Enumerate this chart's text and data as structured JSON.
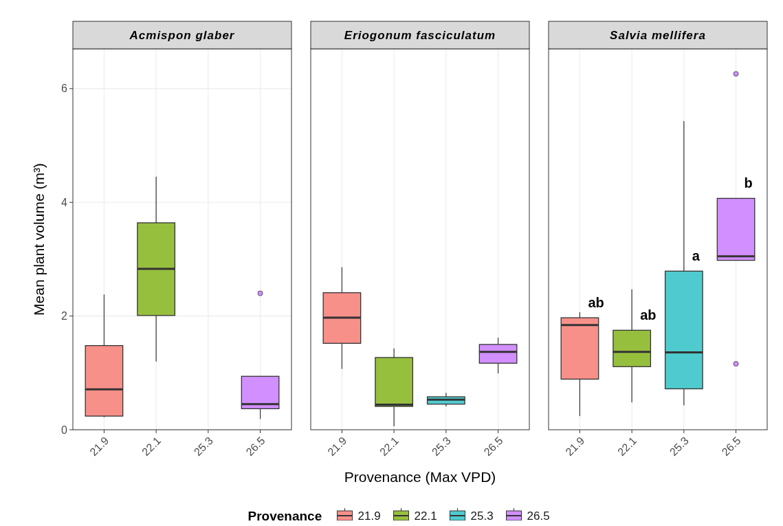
{
  "chart_data": [
    {
      "type": "box",
      "title": "Acmispon glaber",
      "ylabel": "Mean plant volume (m³)",
      "categories": [
        "21.9",
        "22.1",
        "25.3",
        "26.5"
      ],
      "ylim": [
        0,
        6.7
      ],
      "yticks": [
        0,
        2,
        4,
        6
      ],
      "grid": true,
      "legend": "bottom",
      "legend_title": "Provenance",
      "series": [
        {
          "name": "21.9",
          "color": "#f8908a",
          "boxes": [
            {
              "low": 0.22,
              "q1": 0.24,
              "median": 0.71,
              "q3": 1.48,
              "high": 2.38
            },
            null,
            null,
            null
          ]
        },
        {
          "name": "22.1",
          "color": "#97bf3e",
          "boxes": [
            null,
            {
              "low": 1.2,
              "q1": 2.01,
              "median": 2.83,
              "q3": 3.64,
              "high": 4.45
            },
            null,
            null
          ]
        },
        {
          "name": "25.3",
          "color": "#4fcbcf",
          "boxes": [
            null,
            null,
            null,
            null
          ]
        },
        {
          "name": "26.5",
          "color": "#d28fff",
          "boxes": [
            null,
            null,
            null,
            {
              "low": 0.19,
              "q1": 0.37,
              "median": 0.45,
              "q3": 0.94,
              "high": 0.94,
              "outliers": [
                2.4
              ]
            }
          ]
        }
      ]
    },
    {
      "type": "box",
      "title": "Eriogonum fasciculatum",
      "xlabel": "Provenance (Max VPD)",
      "categories": [
        "21.9",
        "22.1",
        "25.3",
        "26.5"
      ],
      "ylim": [
        0,
        6.7
      ],
      "grid": true,
      "tick_labels": "x",
      "series": [
        {
          "color": "#f8908a",
          "boxes": [
            {
              "low": 1.07,
              "q1": 1.52,
              "median": 1.97,
              "q3": 2.41,
              "high": 2.86
            },
            null,
            null,
            null
          ]
        },
        {
          "color": "#97bf3e",
          "boxes": [
            null,
            {
              "low": 0.06,
              "q1": 0.41,
              "median": 0.44,
              "q3": 1.27,
              "high": 1.43
            },
            null,
            null
          ]
        },
        {
          "color": "#4fcbcf",
          "boxes": [
            null,
            null,
            {
              "low": 0.41,
              "q1": 0.45,
              "median": 0.53,
              "q3": 0.58,
              "high": 0.65
            },
            null
          ]
        },
        {
          "color": "#d28fff",
          "boxes": [
            null,
            null,
            null,
            {
              "low": 0.99,
              "q1": 1.17,
              "median": 1.37,
              "q3": 1.5,
              "high": 1.62
            }
          ]
        }
      ]
    },
    {
      "type": "box",
      "title": "Salvia mellifera",
      "categories": [
        "21.9",
        "22.1",
        "25.3",
        "26.5"
      ],
      "ylim": [
        0,
        6.7
      ],
      "grid": true,
      "tick_labels": "x",
      "series": [
        {
          "color": "#f8908a",
          "boxes": [
            {
              "low": 0.24,
              "q1": 0.89,
              "median": 1.84,
              "q3": 1.97,
              "high": 2.07
            },
            null,
            null,
            null
          ]
        },
        {
          "color": "#97bf3e",
          "boxes": [
            null,
            {
              "low": 0.48,
              "q1": 1.11,
              "median": 1.37,
              "q3": 1.75,
              "high": 2.47
            },
            null,
            null
          ]
        },
        {
          "color": "#4fcbcf",
          "boxes": [
            null,
            null,
            {
              "low": 0.43,
              "q1": 0.72,
              "median": 1.36,
              "q3": 2.79,
              "high": 5.43
            },
            null
          ]
        },
        {
          "color": "#d28fff",
          "boxes": [
            null,
            null,
            null,
            {
              "low": 2.98,
              "q1": 2.98,
              "median": 3.05,
              "q3": 4.07,
              "high": 4.07,
              "outliers": [
                6.26,
                1.16
              ]
            }
          ]
        }
      ],
      "annotations": [
        "ab",
        "ab",
        "a",
        "b"
      ]
    }
  ]
}
